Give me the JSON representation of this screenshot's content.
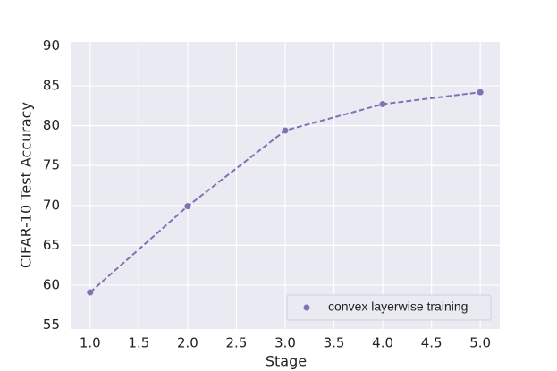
{
  "chart_data": {
    "type": "line",
    "x_label": "Stage",
    "y_label": "CIFAR-10 Test Accuracy",
    "x": [
      1.0,
      2.0,
      3.0,
      4.0,
      5.0
    ],
    "series": [
      {
        "name": "convex layerwise training",
        "color": "#8172b3",
        "values": [
          59.1,
          69.9,
          79.4,
          82.7,
          84.2
        ]
      }
    ],
    "xlim": [
      0.8,
      5.2
    ],
    "xticks": [
      {
        "value": 1.0,
        "label": "1.0"
      },
      {
        "value": 1.5,
        "label": "1.5"
      },
      {
        "value": 2.0,
        "label": "2.0"
      },
      {
        "value": 2.5,
        "label": "2.5"
      },
      {
        "value": 3.0,
        "label": "3.0"
      },
      {
        "value": 3.5,
        "label": "3.5"
      },
      {
        "value": 4.0,
        "label": "4.0"
      },
      {
        "value": 4.5,
        "label": "4.5"
      },
      {
        "value": 5.0,
        "label": "5.0"
      }
    ],
    "ylim": [
      54.5,
      90.5
    ],
    "yticks": [
      55,
      60,
      65,
      70,
      75,
      80,
      85,
      90
    ],
    "grid": true,
    "line_style": "dashed",
    "legend_position": "lower right"
  }
}
